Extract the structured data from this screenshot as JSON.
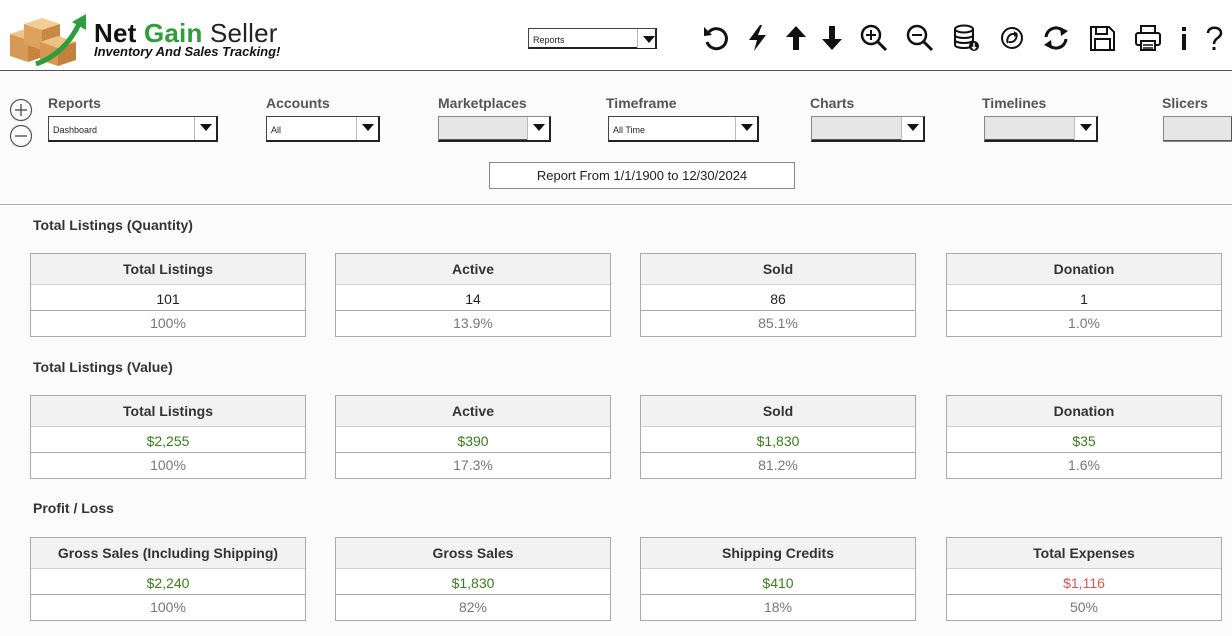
{
  "app": {
    "title_part1": "Net",
    "title_part2": "Gain",
    "title_part3": "Seller",
    "subtitle": "Inventory And Sales Tracking!"
  },
  "header": {
    "view_select": "Reports",
    "toolbar": [
      {
        "name": "refresh-undo-icon"
      },
      {
        "name": "lightning-icon"
      },
      {
        "name": "arrow-up-icon"
      },
      {
        "name": "arrow-down-icon"
      },
      {
        "name": "zoom-in-icon"
      },
      {
        "name": "zoom-out-icon"
      },
      {
        "name": "database-add-icon"
      },
      {
        "name": "sync-circle-icon"
      },
      {
        "name": "reload-icon"
      },
      {
        "name": "save-icon"
      },
      {
        "name": "print-icon"
      },
      {
        "name": "info-icon"
      },
      {
        "name": "help-icon"
      }
    ]
  },
  "filters": {
    "reports": {
      "label": "Reports",
      "value": "Dashboard"
    },
    "accounts": {
      "label": "Accounts",
      "value": "All"
    },
    "marketplaces": {
      "label": "Marketplaces",
      "value": ""
    },
    "timeframe": {
      "label": "Timeframe",
      "value": "All Time"
    },
    "charts": {
      "label": "Charts",
      "value": ""
    },
    "timelines": {
      "label": "Timelines",
      "value": ""
    },
    "slicers": {
      "label": "Slicers",
      "value": ""
    }
  },
  "report_range": "Report From 1/1/1900 to 12/30/2024",
  "sections": [
    {
      "title": "Total Listings (Quantity)",
      "cards": [
        {
          "header": "Total Listings",
          "value": "101",
          "pct": "100%"
        },
        {
          "header": "Active",
          "value": "14",
          "pct": "13.9%"
        },
        {
          "header": "Sold",
          "value": "86",
          "pct": "85.1%"
        },
        {
          "header": "Donation",
          "value": "1",
          "pct": "1.0%"
        }
      ]
    },
    {
      "title": "Total Listings (Value)",
      "cards": [
        {
          "header": "Total Listings",
          "value": "$2,255",
          "pct": "100%"
        },
        {
          "header": "Active",
          "value": "$390",
          "pct": "17.3%"
        },
        {
          "header": "Sold",
          "value": "$1,830",
          "pct": "81.2%"
        },
        {
          "header": "Donation",
          "value": "$35",
          "pct": "1.6%"
        }
      ]
    },
    {
      "title": "Profit / Loss",
      "cards": [
        {
          "header": "Gross Sales (Including Shipping)",
          "value": "$2,240",
          "pct": "100%"
        },
        {
          "header": "Gross Sales",
          "value": "$1,830",
          "pct": "82%"
        },
        {
          "header": "Shipping Credits",
          "value": "$410",
          "pct": "18%"
        },
        {
          "header": "Total Expenses",
          "value": "$1,116",
          "pct": "50%"
        }
      ]
    }
  ],
  "colors": {
    "brand_green": "#2e9e3a",
    "value_green": "#3a7d1f",
    "expense_red": "#d05a55"
  }
}
